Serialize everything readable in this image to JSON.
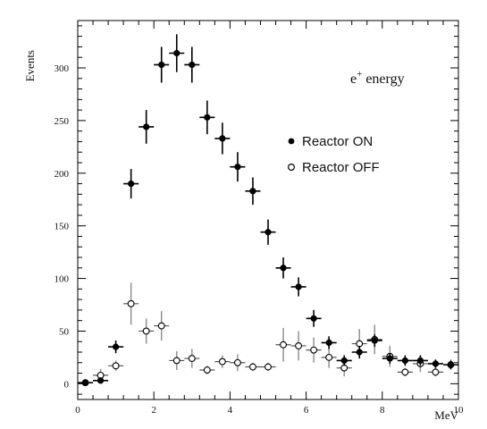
{
  "chart_data": {
    "type": "scatter",
    "xlabel": "MeV",
    "ylabel": "Events",
    "annotation": {
      "text": "e",
      "sup": "+",
      "suffix": " energy"
    },
    "xlim": [
      0,
      10
    ],
    "ylim": [
      -15,
      345
    ],
    "xticks": [
      0,
      2,
      4,
      6,
      8,
      10
    ],
    "yticks": [
      0,
      50,
      100,
      150,
      200,
      250,
      300
    ],
    "grid": false,
    "legend_position": "top-right",
    "series": [
      {
        "name": "Reactor ON",
        "marker": "filled-circle",
        "color": "#000000",
        "points": [
          {
            "x": 0.2,
            "y": 1,
            "yerr": 2
          },
          {
            "x": 0.6,
            "y": 3,
            "yerr": 3
          },
          {
            "x": 1.0,
            "y": 35,
            "yerr": 6
          },
          {
            "x": 1.4,
            "y": 190,
            "yerr": 14
          },
          {
            "x": 1.8,
            "y": 244,
            "yerr": 16
          },
          {
            "x": 2.2,
            "y": 303,
            "yerr": 17
          },
          {
            "x": 2.6,
            "y": 314,
            "yerr": 18
          },
          {
            "x": 3.0,
            "y": 303,
            "yerr": 17
          },
          {
            "x": 3.4,
            "y": 253,
            "yerr": 16
          },
          {
            "x": 3.8,
            "y": 233,
            "yerr": 15
          },
          {
            "x": 4.2,
            "y": 206,
            "yerr": 14
          },
          {
            "x": 4.6,
            "y": 183,
            "yerr": 13
          },
          {
            "x": 5.0,
            "y": 144,
            "yerr": 12
          },
          {
            "x": 5.4,
            "y": 110,
            "yerr": 10
          },
          {
            "x": 5.8,
            "y": 92,
            "yerr": 9
          },
          {
            "x": 6.2,
            "y": 62,
            "yerr": 8
          },
          {
            "x": 6.6,
            "y": 39,
            "yerr": 6
          },
          {
            "x": 7.0,
            "y": 22,
            "yerr": 5
          },
          {
            "x": 7.4,
            "y": 30,
            "yerr": 6
          },
          {
            "x": 7.8,
            "y": 41,
            "yerr": 6
          },
          {
            "x": 8.2,
            "y": 24,
            "yerr": 5
          },
          {
            "x": 8.6,
            "y": 22,
            "yerr": 5
          },
          {
            "x": 9.0,
            "y": 22,
            "yerr": 5
          },
          {
            "x": 9.4,
            "y": 19,
            "yerr": 4
          },
          {
            "x": 9.8,
            "y": 18,
            "yerr": 4
          }
        ]
      },
      {
        "name": "Reactor OFF",
        "marker": "open-circle",
        "color": "#000000",
        "errcolor": "#8a8a8a",
        "points": [
          {
            "x": 0.2,
            "y": 1,
            "yerr": 2
          },
          {
            "x": 0.6,
            "y": 8,
            "yerr": 6
          },
          {
            "x": 1.0,
            "y": 17,
            "yerr": 5
          },
          {
            "x": 1.4,
            "y": 76,
            "yerr": 20
          },
          {
            "x": 1.8,
            "y": 50,
            "yerr": 12
          },
          {
            "x": 2.2,
            "y": 55,
            "yerr": 14
          },
          {
            "x": 2.6,
            "y": 22,
            "yerr": 9
          },
          {
            "x": 3.0,
            "y": 24,
            "yerr": 9
          },
          {
            "x": 3.4,
            "y": 13,
            "yerr": 4
          },
          {
            "x": 3.8,
            "y": 21,
            "yerr": 6
          },
          {
            "x": 4.2,
            "y": 20,
            "yerr": 8
          },
          {
            "x": 4.6,
            "y": 16,
            "yerr": 4
          },
          {
            "x": 5.0,
            "y": 16,
            "yerr": 4
          },
          {
            "x": 5.4,
            "y": 37,
            "yerr": 16
          },
          {
            "x": 5.8,
            "y": 36,
            "yerr": 14
          },
          {
            "x": 6.2,
            "y": 32,
            "yerr": 12
          },
          {
            "x": 6.6,
            "y": 25,
            "yerr": 10
          },
          {
            "x": 7.0,
            "y": 15,
            "yerr": 8
          },
          {
            "x": 7.4,
            "y": 38,
            "yerr": 14
          },
          {
            "x": 7.8,
            "y": 42,
            "yerr": 14
          },
          {
            "x": 8.2,
            "y": 26,
            "yerr": 10
          },
          {
            "x": 8.6,
            "y": 11,
            "yerr": 4
          },
          {
            "x": 9.0,
            "y": 19,
            "yerr": 8
          },
          {
            "x": 9.4,
            "y": 11,
            "yerr": 4
          },
          {
            "x": 9.8,
            "y": 18,
            "yerr": 5
          }
        ]
      }
    ]
  }
}
